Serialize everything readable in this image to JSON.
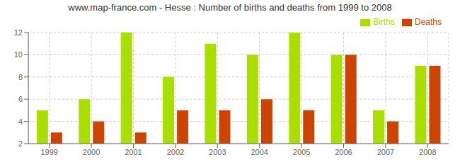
{
  "chart_data": {
    "type": "bar",
    "title": "www.map-france.com - Hesse : Number of births and deaths from 1999 to 2008",
    "categories": [
      "1999",
      "2000",
      "2001",
      "2002",
      "2003",
      "2004",
      "2005",
      "2006",
      "2007",
      "2008"
    ],
    "series": [
      {
        "name": "Births",
        "color": "#aadd00",
        "values": [
          5,
          6,
          12,
          8,
          11,
          10,
          12,
          10,
          5,
          9
        ]
      },
      {
        "name": "Deaths",
        "color": "#cc4400",
        "values": [
          3,
          4,
          3,
          5,
          5,
          6,
          5,
          10,
          4,
          9
        ]
      }
    ],
    "ylim": [
      2,
      12
    ],
    "yticks": [
      2,
      4,
      6,
      8,
      10,
      12
    ],
    "grid": true,
    "legend": "upper right"
  }
}
